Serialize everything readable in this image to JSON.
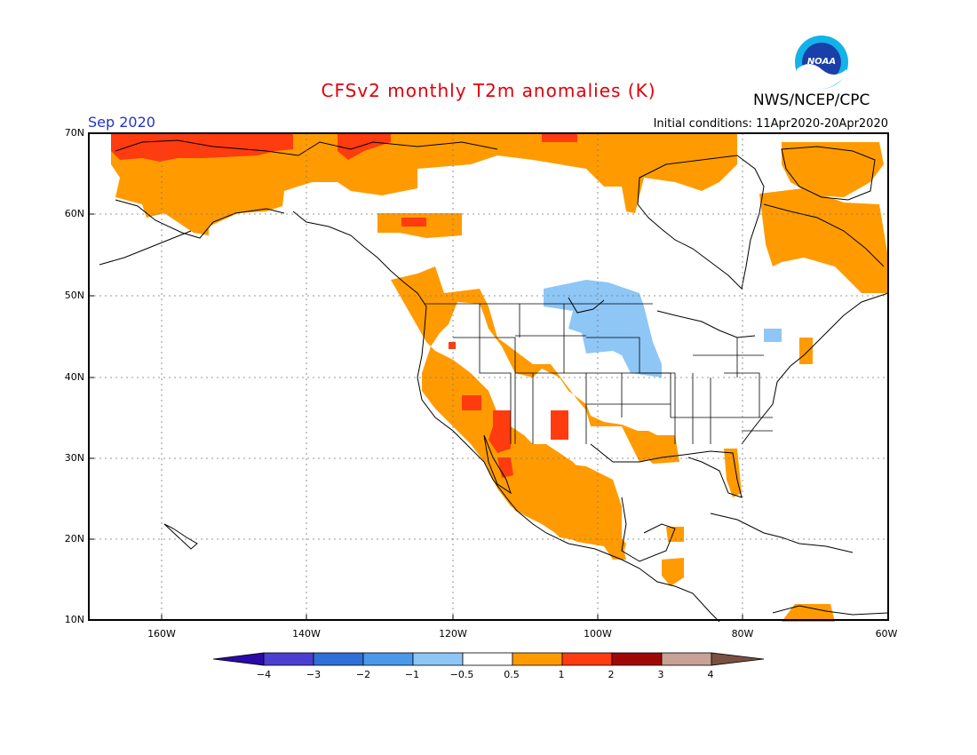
{
  "title": "CFSv2 monthly T2m anomalies (K)",
  "organization": "NWS/NCEP/CPC",
  "logo_text": "NOAA",
  "month": "Sep 2020",
  "initial_conditions": "Initial conditions: 11Apr2020-20Apr2020",
  "lat_labels": [
    "70N",
    "60N",
    "50N",
    "40N",
    "30N",
    "20N",
    "10N"
  ],
  "lon_labels": [
    "160W",
    "140W",
    "120W",
    "100W",
    "80W",
    "60W"
  ],
  "colorbar": {
    "labels": [
      "−4",
      "−3",
      "−2",
      "−1",
      "−0.5",
      "0.5",
      "1",
      "2",
      "3",
      "4"
    ],
    "colors": [
      "#2b08a8",
      "#4a3fd0",
      "#2f6fd8",
      "#4a98ec",
      "#8ec6f6",
      "#ffffff",
      "#ff9b00",
      "#ff3b10",
      "#a00808",
      "#c8a294",
      "#7a5040"
    ]
  }
}
